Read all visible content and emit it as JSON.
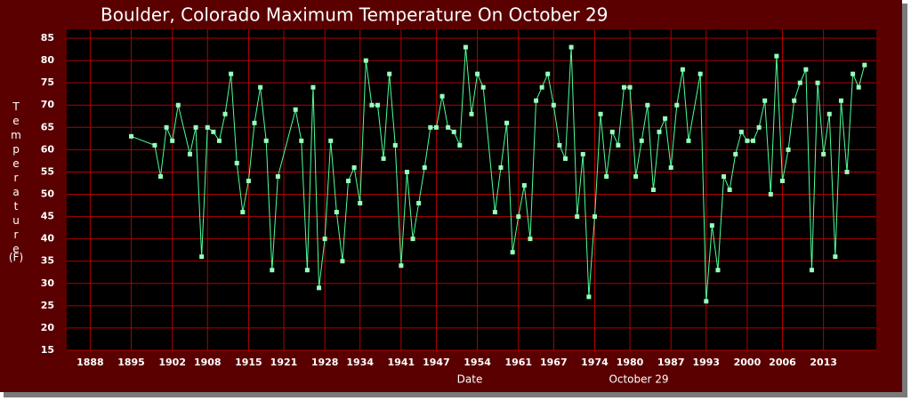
{
  "chart_data": {
    "type": "line",
    "title": "Boulder, Colorado Maximum Temperature On October 29",
    "y_label": "Temperature",
    "y_unit": "(F)",
    "x_label": "Date",
    "x_sublabel": "October 29",
    "xlim": [
      1884,
      2022
    ],
    "xticks": [
      1888,
      1895,
      1902,
      1908,
      1915,
      1921,
      1928,
      1934,
      1941,
      1947,
      1954,
      1961,
      1967,
      1974,
      1980,
      1987,
      1993,
      2000,
      2006,
      2013
    ],
    "ylim": [
      15,
      87
    ],
    "yticks": [
      15,
      20,
      25,
      30,
      35,
      40,
      45,
      50,
      55,
      60,
      65,
      70,
      75,
      80,
      85
    ],
    "grid": true,
    "series": [
      {
        "color": "#4dff99",
        "marker_color": "#99ffbb",
        "x": [
          1895,
          1899,
          1900,
          1901,
          1902,
          1903,
          1905,
          1906,
          1907,
          1908,
          1909,
          1910,
          1911,
          1912,
          1913,
          1914,
          1915,
          1916,
          1917,
          1918,
          1919,
          1920,
          1923,
          1924,
          1925,
          1926,
          1927,
          1928,
          1929,
          1930,
          1931,
          1932,
          1933,
          1934,
          1935,
          1936,
          1937,
          1938,
          1939,
          1940,
          1941,
          1942,
          1943,
          1944,
          1945,
          1946,
          1947,
          1948,
          1949,
          1950,
          1951,
          1952,
          1953,
          1954,
          1955,
          1957,
          1958,
          1959,
          1960,
          1961,
          1962,
          1963,
          1964,
          1965,
          1966,
          1967,
          1968,
          1969,
          1970,
          1971,
          1972,
          1973,
          1974,
          1975,
          1976,
          1977,
          1978,
          1979,
          1980,
          1981,
          1982,
          1983,
          1984,
          1985,
          1986,
          1987,
          1988,
          1989,
          1990,
          1992,
          1993,
          1994,
          1995,
          1996,
          1997,
          1998,
          1999,
          2000,
          2001,
          2002,
          2003,
          2004,
          2005,
          2006,
          2007,
          2008,
          2009,
          2010,
          2011,
          2012,
          2013,
          2014,
          2015,
          2016,
          2017,
          2018,
          2019,
          2020
        ],
        "values": [
          63,
          61,
          54,
          65,
          62,
          70,
          59,
          65,
          36,
          65,
          64,
          62,
          68,
          77,
          57,
          46,
          53,
          66,
          74,
          62,
          33,
          54,
          69,
          62,
          33,
          74,
          29,
          40,
          62,
          46,
          35,
          53,
          56,
          48,
          80,
          70,
          70,
          58,
          77,
          61,
          34,
          55,
          40,
          48,
          56,
          65,
          65,
          72,
          65,
          64,
          61,
          83,
          68,
          77,
          74,
          46,
          56,
          66,
          37,
          45,
          52,
          40,
          71,
          74,
          77,
          70,
          61,
          58,
          83,
          45,
          59,
          27,
          45,
          68,
          54,
          64,
          61,
          74,
          74,
          54,
          62,
          70,
          51,
          64,
          67,
          56,
          70,
          78,
          62,
          77,
          26,
          43,
          33,
          54,
          51,
          59,
          64,
          62,
          62,
          65,
          71,
          50,
          81,
          53,
          60,
          71,
          75,
          78,
          33,
          75,
          59,
          68,
          36,
          71,
          55,
          77,
          74,
          79
        ]
      }
    ]
  }
}
